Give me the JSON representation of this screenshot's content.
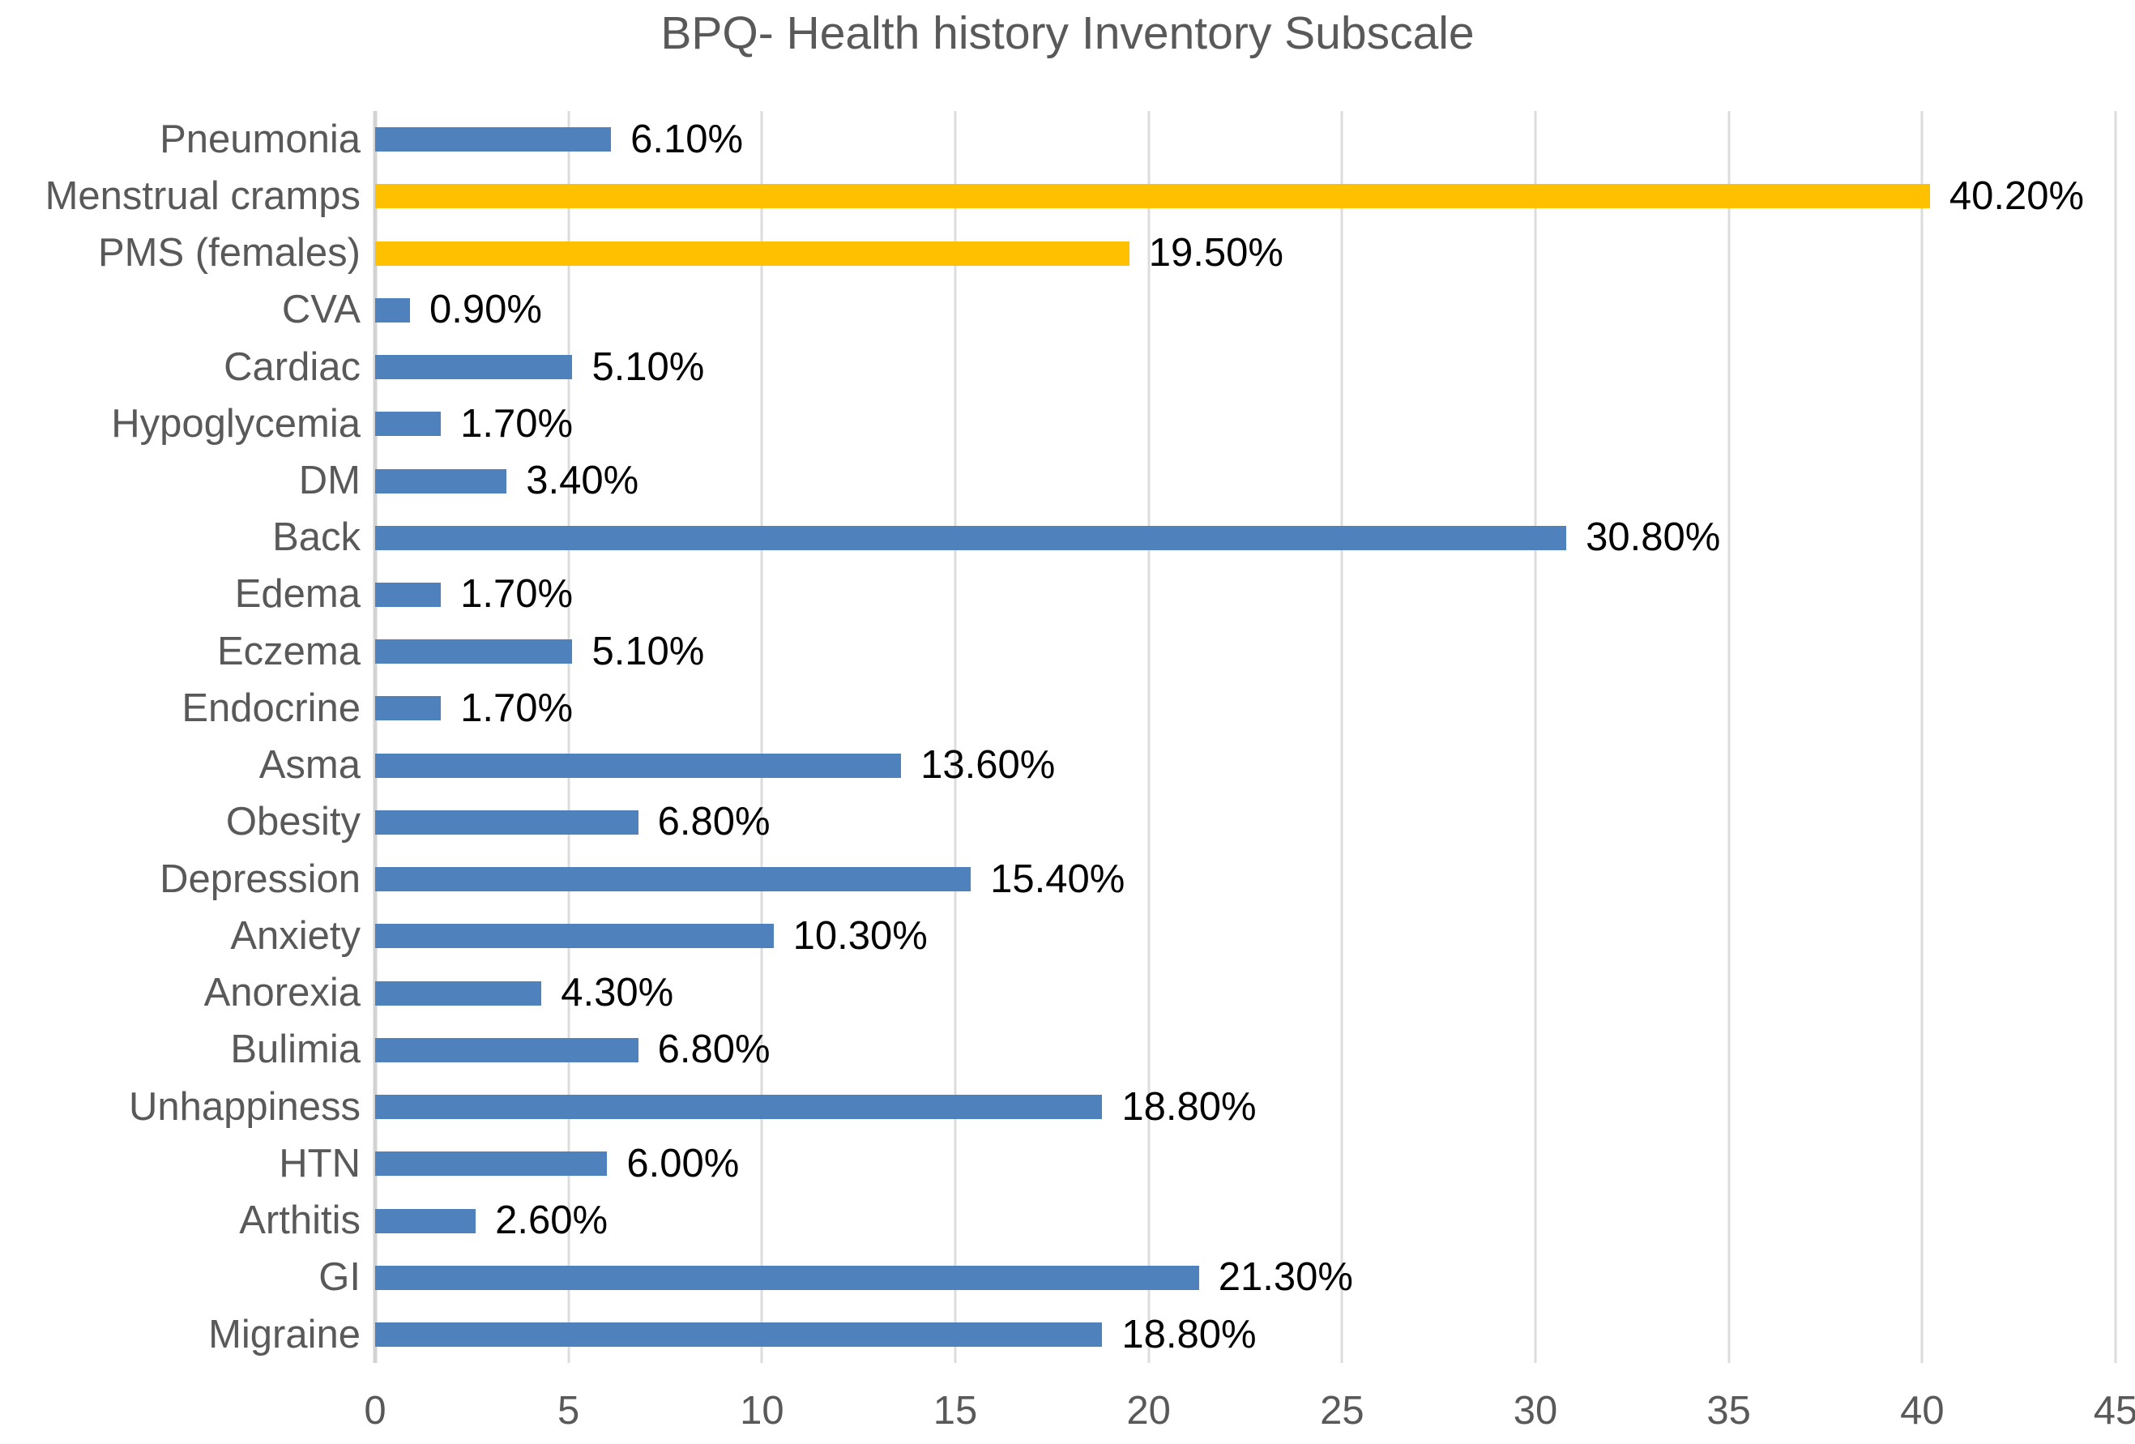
{
  "colors": {
    "default_bar": "#4F81BD",
    "highlight_bar": "#FFC000",
    "grid": "#DCDCDC",
    "axis": "#D3D3D3",
    "title_text": "#595959",
    "label_text": "#595959",
    "value_text": "#000000"
  },
  "chart_data": {
    "type": "bar",
    "orientation": "horizontal",
    "title": "BPQ- Health history Inventory Subscale",
    "xlabel": "",
    "ylabel": "",
    "xlim": [
      0,
      45
    ],
    "xticks": [
      0,
      5,
      10,
      15,
      20,
      25,
      30,
      35,
      40,
      45
    ],
    "grid": true,
    "legend": "none",
    "categories": [
      "Pneumonia",
      "Menstrual cramps",
      "PMS (females)",
      "CVA",
      "Cardiac",
      "Hypoglycemia",
      "DM",
      "Back",
      "Edema",
      "Eczema",
      "Endocrine",
      "Asma",
      "Obesity",
      "Depression",
      "Anxiety",
      "Anorexia",
      "Bulimia",
      "Unhappiness",
      "HTN",
      "Arthitis",
      "GI",
      "Migraine"
    ],
    "values": [
      6.1,
      40.2,
      19.5,
      0.9,
      5.1,
      1.7,
      3.4,
      30.8,
      1.7,
      5.1,
      1.7,
      13.6,
      6.8,
      15.4,
      10.3,
      4.3,
      6.8,
      18.8,
      6.0,
      2.6,
      21.3,
      18.8
    ],
    "value_labels": [
      "6.10%",
      "40.20%",
      "19.50%",
      "0.90%",
      "5.10%",
      "1.70%",
      "3.40%",
      "30.80%",
      "1.70%",
      "5.10%",
      "1.70%",
      "13.60%",
      "6.80%",
      "15.40%",
      "10.30%",
      "4.30%",
      "6.80%",
      "18.80%",
      "6.00%",
      "2.60%",
      "21.30%",
      "18.80%"
    ],
    "highlight_indices": [
      1,
      2
    ]
  }
}
